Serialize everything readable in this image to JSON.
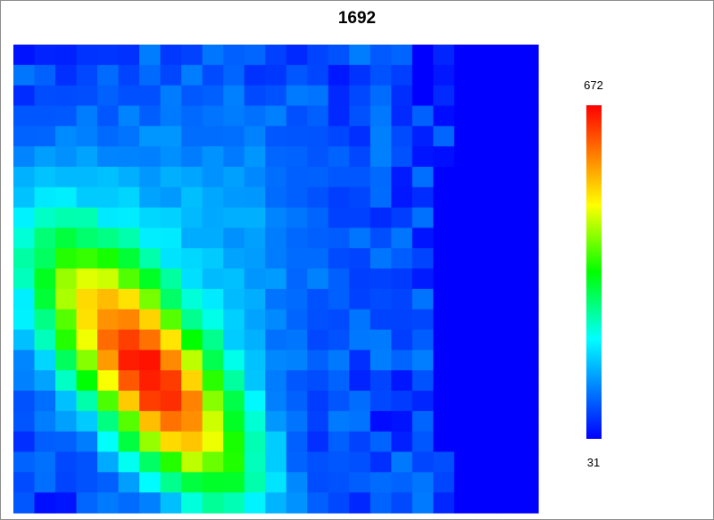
{
  "chart_data": {
    "type": "heatmap",
    "title": "1692",
    "colorbar": {
      "min": 31,
      "max": 672,
      "min_label": "31",
      "max_label": "672",
      "colormap": "jet",
      "colors": [
        "#0000ff",
        "#00ffff",
        "#00ff00",
        "#ffff00",
        "#ff0000"
      ]
    },
    "grid": {
      "rows": 23,
      "cols": 25
    },
    "background_value": 31,
    "blob": {
      "description_value_model": "elliptical peak",
      "peak_value": 672,
      "peak_row": 15.5,
      "peak_col": 5.8
    }
  }
}
